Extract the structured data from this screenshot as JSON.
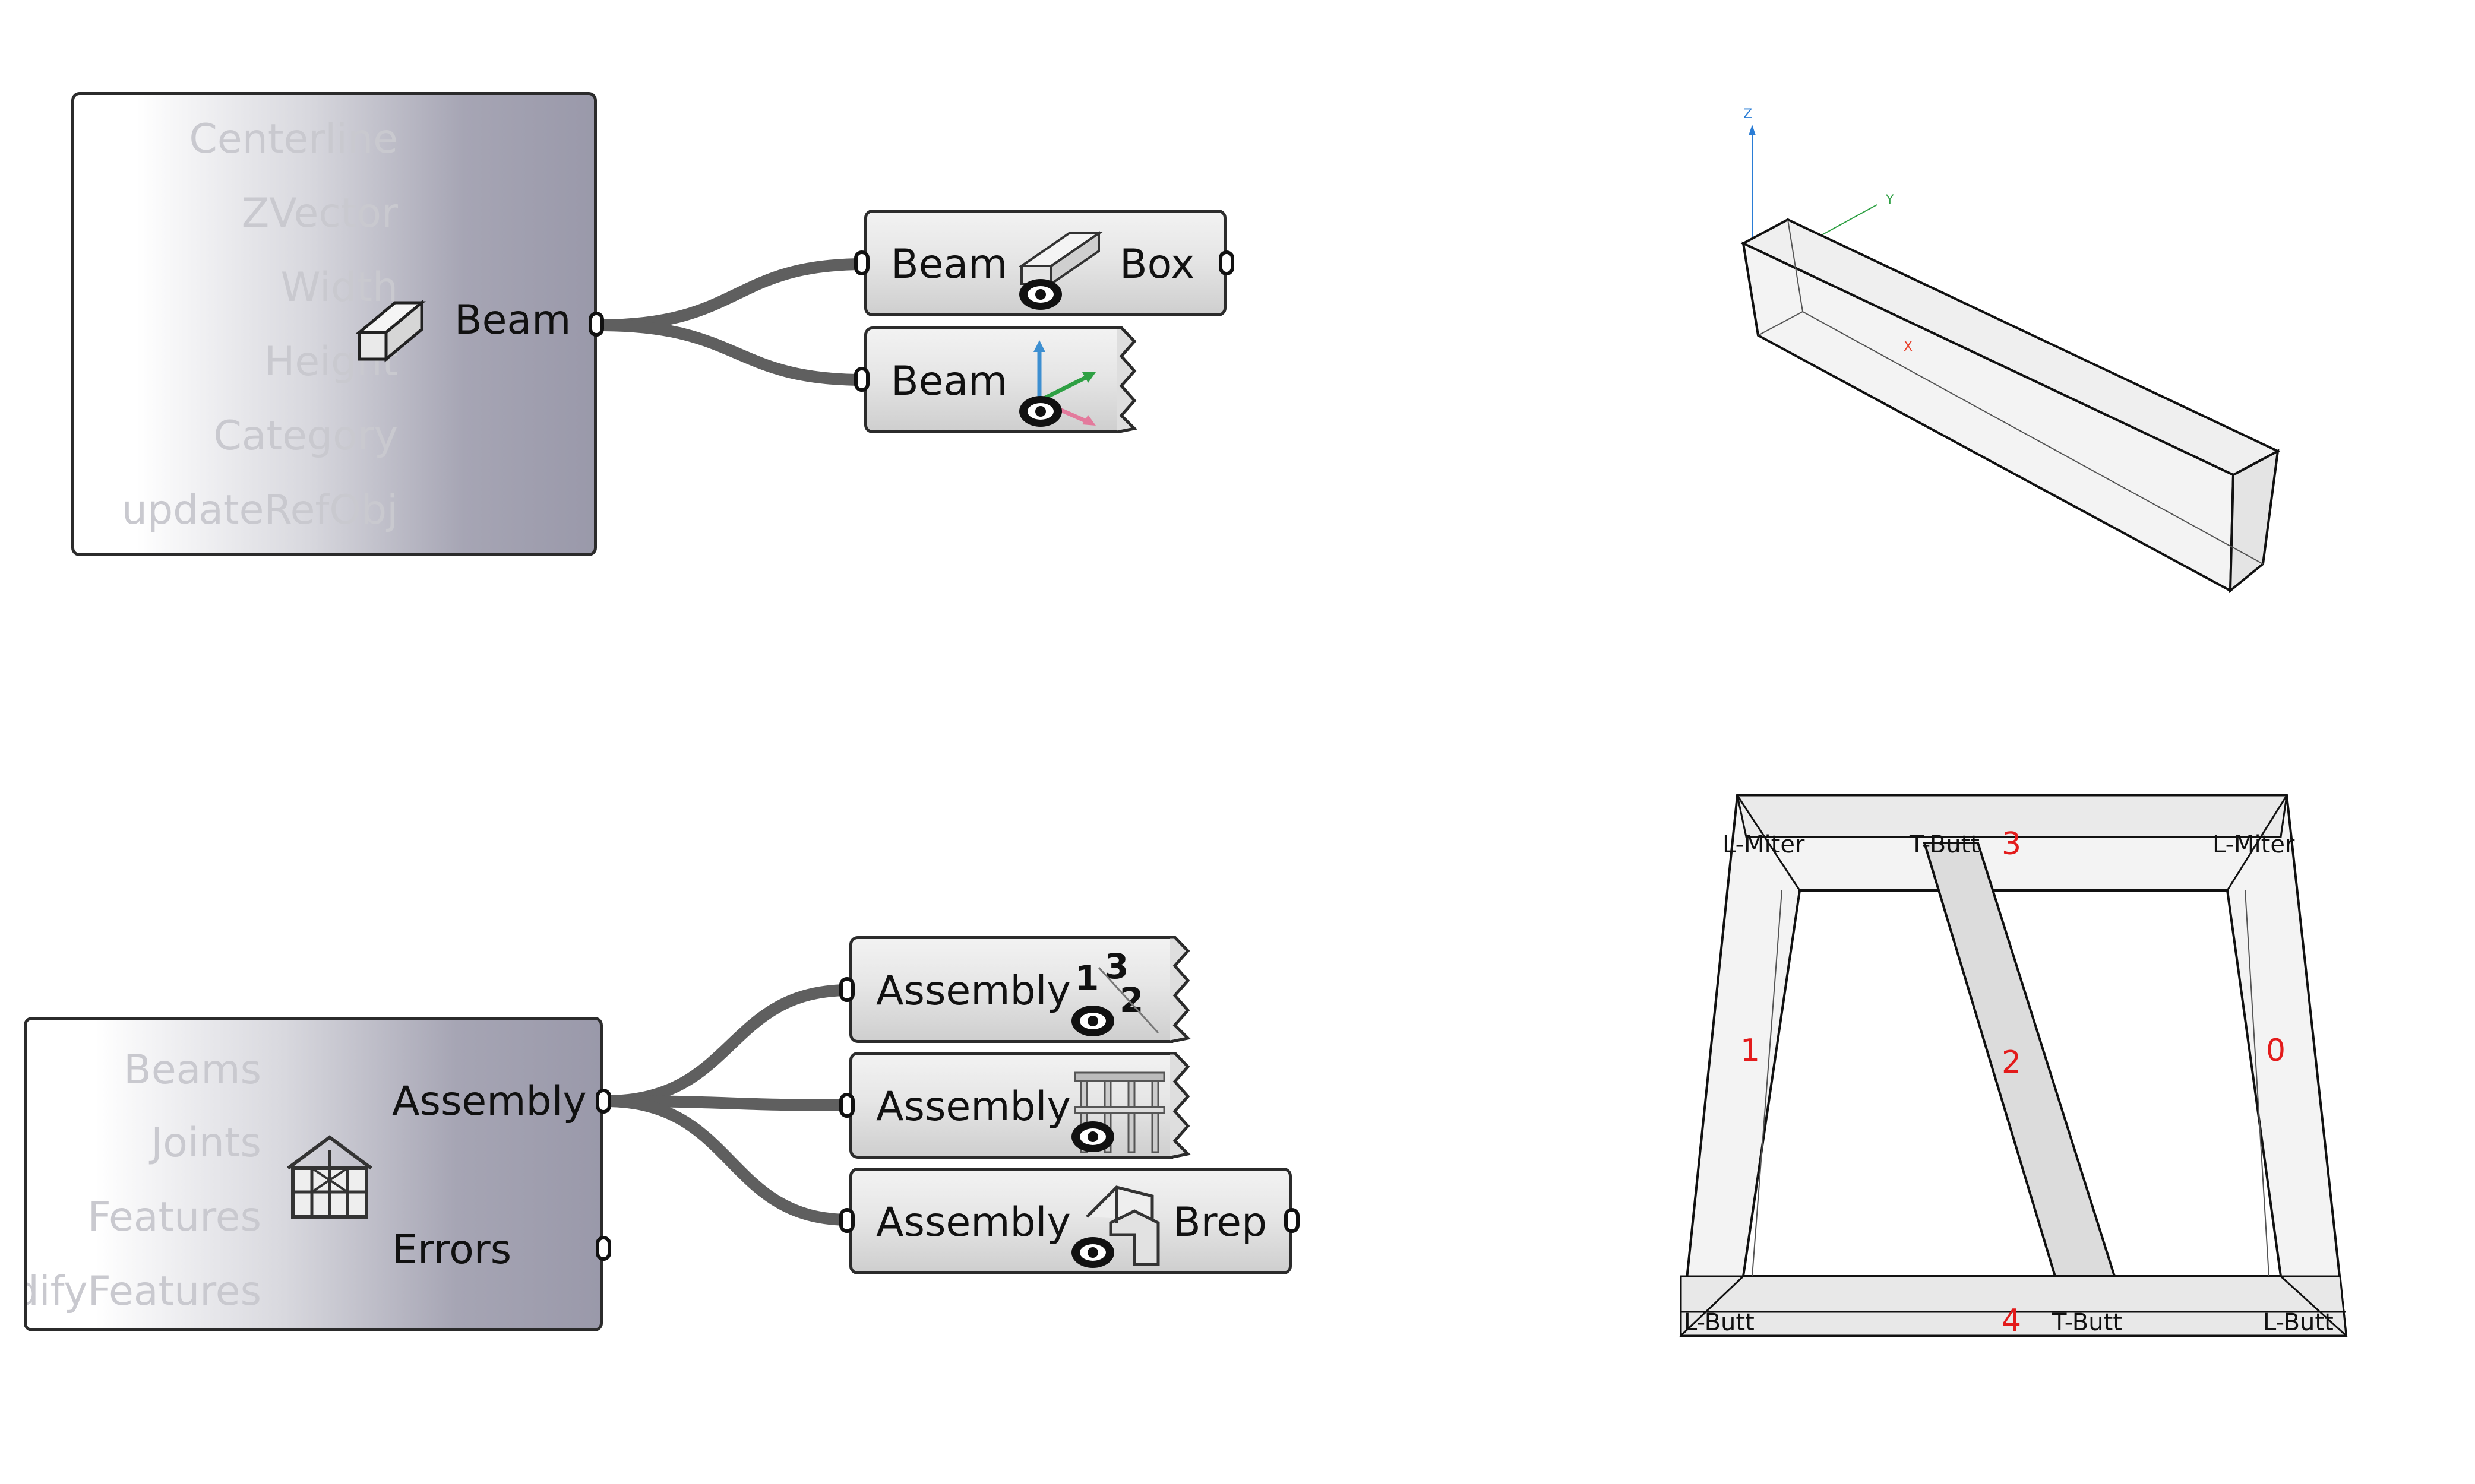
{
  "beam_component": {
    "inputs": [
      "Centerline",
      "ZVector",
      "Width",
      "Height",
      "Category",
      "updateRefObj"
    ],
    "output": "Beam",
    "icon": "beam-icon"
  },
  "beam_outputs": [
    {
      "input": "Beam",
      "output": "Box",
      "icon": "preview-box-icon"
    },
    {
      "input": "Beam",
      "icon": "preview-frame-icon"
    }
  ],
  "assembly_component": {
    "inputs": [
      "Beams",
      "Joints",
      "Features",
      "ModifyFeatures"
    ],
    "outputs": [
      "Assembly",
      "Errors"
    ],
    "icon": "assembly-icon"
  },
  "assembly_outputs": [
    {
      "input": "Assembly",
      "icon": "show-beam-index-icon"
    },
    {
      "input": "Assembly",
      "icon": "show-joints-icon"
    },
    {
      "input": "Assembly",
      "output": "Brep",
      "icon": "assembly-brep-icon"
    }
  ],
  "viewport_beam": {
    "axes": [
      "Z",
      "Y",
      "X"
    ]
  },
  "viewport_frame": {
    "joint_labels": [
      "L-Miter",
      "T-Butt",
      "L-Miter",
      "L-Butt",
      "T-Butt",
      "L-Butt"
    ],
    "beam_indices": [
      "3",
      "1",
      "2",
      "0",
      "4"
    ]
  },
  "colors": {
    "index_red": "#e31b1b",
    "wire": "#5f5f5f",
    "axis_x": "#e8412c",
    "axis_y": "#2ea043",
    "axis_z": "#2a7dd6"
  }
}
